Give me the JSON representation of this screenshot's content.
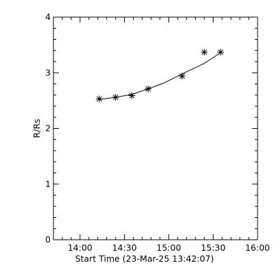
{
  "chart_data": {
    "type": "scatter",
    "xlabel": "Start Time (23-Mar-25 13:42:07)",
    "ylabel": "R/Rs",
    "xlim_minutes": [
      822,
      960
    ],
    "ylim": [
      0,
      4
    ],
    "x_ticks": [
      {
        "label": "14:00",
        "minutes": 840
      },
      {
        "label": "14:30",
        "minutes": 870
      },
      {
        "label": "15:00",
        "minutes": 900
      },
      {
        "label": "15:30",
        "minutes": 930
      },
      {
        "label": "16:00",
        "minutes": 960
      }
    ],
    "y_ticks": [
      0,
      1,
      2,
      3,
      4
    ],
    "points": [
      {
        "time": "14:13",
        "r": 2.53
      },
      {
        "time": "14:24",
        "r": 2.56
      },
      {
        "time": "14:35",
        "r": 2.59
      },
      {
        "time": "14:46",
        "r": 2.71
      },
      {
        "time": "15:09",
        "r": 2.94
      },
      {
        "time": "15:24",
        "r": 3.37
      },
      {
        "time": "15:35",
        "r": 3.37
      }
    ],
    "fit_curve": [
      {
        "time": "14:13",
        "r": 2.52
      },
      {
        "time": "14:24",
        "r": 2.56
      },
      {
        "time": "14:35",
        "r": 2.61
      },
      {
        "time": "14:46",
        "r": 2.71
      },
      {
        "time": "14:57",
        "r": 2.82
      },
      {
        "time": "15:09",
        "r": 2.98
      },
      {
        "time": "15:24",
        "r": 3.17
      },
      {
        "time": "15:35",
        "r": 3.36
      }
    ],
    "grid": false,
    "colors": {
      "line": "#000000",
      "marker": "#000000",
      "background": "#ffffff"
    }
  }
}
